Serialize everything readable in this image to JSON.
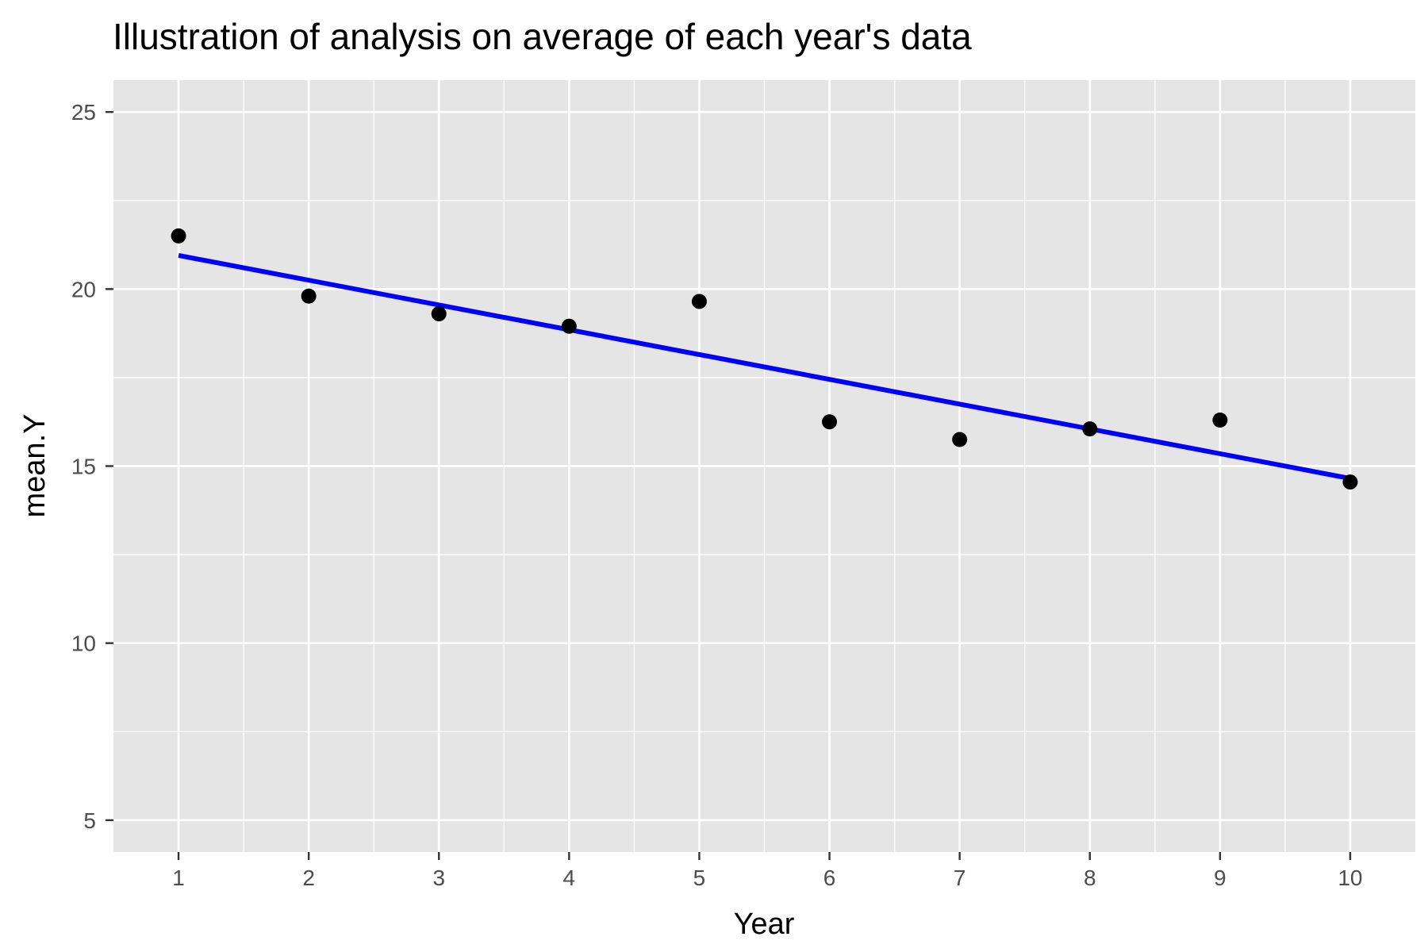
{
  "chart_data": {
    "type": "scatter",
    "title": "Illustration of analysis on average of each year's data",
    "xlabel": "Year",
    "ylabel": "mean.Y",
    "x_ticks": [
      "1",
      "2",
      "3",
      "4",
      "5",
      "6",
      "7",
      "8",
      "9",
      "10"
    ],
    "y_ticks": [
      "5",
      "10",
      "15",
      "20",
      "25"
    ],
    "xlim": [
      0.5,
      10.5
    ],
    "ylim": [
      4.1,
      25.9
    ],
    "grid": true,
    "legend": "none",
    "series": [
      {
        "type": "scatter",
        "x": [
          1,
          2,
          3,
          4,
          5,
          6,
          7,
          8,
          9,
          10
        ],
        "y": [
          21.5,
          19.8,
          19.3,
          18.95,
          19.65,
          16.25,
          15.75,
          16.05,
          16.3,
          14.55
        ],
        "color": "#000000"
      },
      {
        "type": "line",
        "x": [
          1,
          10
        ],
        "y": [
          20.95,
          14.65
        ],
        "color": "#0000ff"
      }
    ],
    "colors": {
      "panel": "#e5e5e5",
      "grid": "#ffffff",
      "points": "#000000",
      "fit_line": "#0000ff"
    }
  }
}
